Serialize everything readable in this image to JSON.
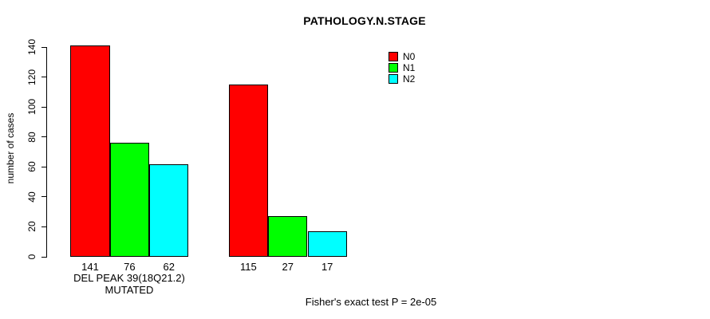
{
  "chart_data": {
    "type": "bar",
    "title": "PATHOLOGY.N.STAGE",
    "ylabel": "number of cases",
    "xlabel": "DEL PEAK 39(18Q21.2) MUTATED",
    "footnote": "Fisher's exact test P = 2e-05",
    "ylim": [
      0,
      140
    ],
    "yticks": [
      0,
      20,
      40,
      60,
      80,
      100,
      120,
      140
    ],
    "grid": false,
    "legend_position": "top-right",
    "series": [
      {
        "name": "N0",
        "color": "#FF0000",
        "values": [
          141,
          115
        ]
      },
      {
        "name": "N1",
        "color": "#00FF00",
        "values": [
          76,
          27
        ]
      },
      {
        "name": "N2",
        "color": "#00FFFF",
        "values": [
          62,
          17
        ]
      }
    ],
    "bar_value_labels": [
      "141",
      "76",
      "62",
      "115",
      "27",
      "17"
    ]
  }
}
